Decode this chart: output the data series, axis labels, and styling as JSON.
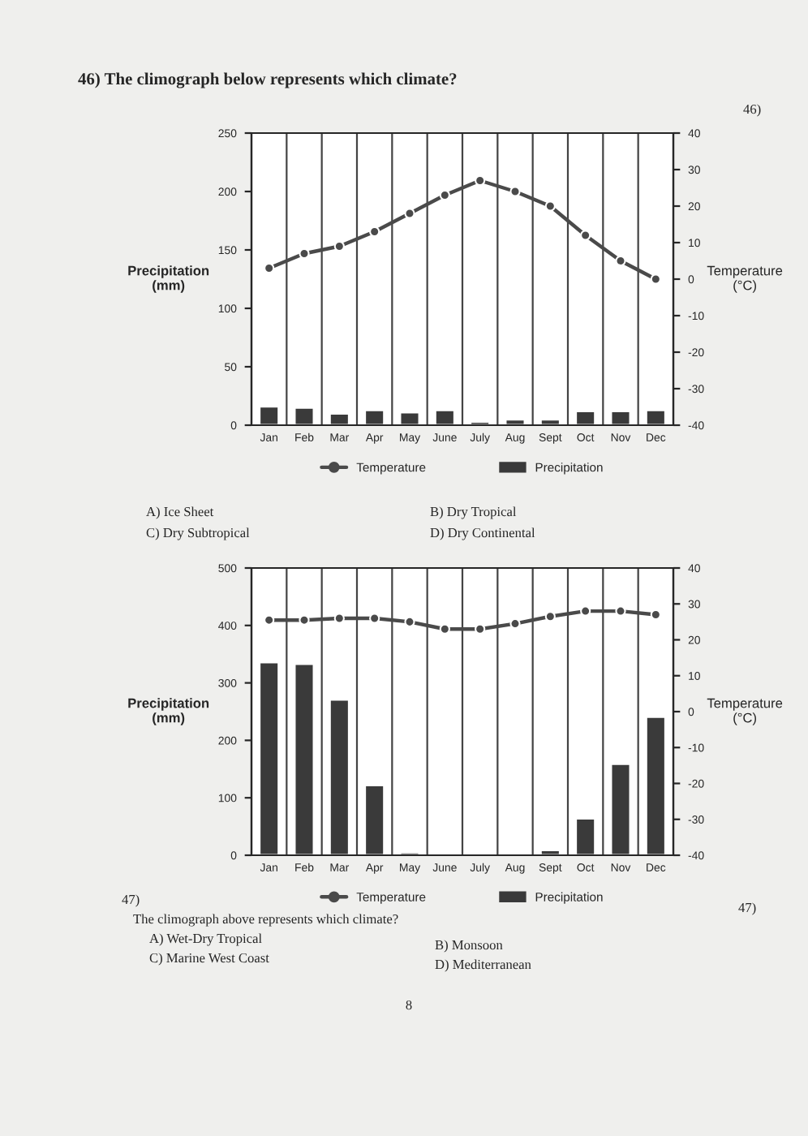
{
  "chart_data": [
    {
      "type": "bar",
      "title": "46) The climograph below represents which climate?",
      "ylabel": "Precipitation\n(mm)",
      "y2label": "Temperature\n(°C)",
      "categories": [
        "Jan",
        "Feb",
        "Mar",
        "Apr",
        "May",
        "June",
        "July",
        "Aug",
        "Sept",
        "Oct",
        "Nov",
        "Dec"
      ],
      "series": [
        {
          "name": "Temperature",
          "type": "line",
          "axis": "y2",
          "color": "#4a4a4a",
          "values": [
            3,
            7,
            9,
            13,
            18,
            23,
            27,
            24,
            20,
            12,
            5,
            0
          ]
        },
        {
          "name": "Precipitation",
          "color": "#3a3a3a",
          "values": [
            16,
            15,
            10,
            13,
            11,
            13,
            3,
            5,
            5,
            12,
            12,
            13
          ]
        }
      ],
      "ylim": [
        0,
        250
      ],
      "yticks": [
        0,
        50,
        100,
        150,
        200,
        250
      ],
      "y2lim": [
        -40,
        40
      ],
      "y2ticks": [
        -40,
        -30,
        -20,
        -10,
        0,
        10,
        20,
        30,
        40
      ],
      "marker": "circle",
      "grid": "x",
      "legend": "bottom",
      "annotations": [
        "46)",
        "A) Ice Sheet",
        "B) Dry Tropical",
        "C) Dry Subtropical",
        "D) Dry Continental"
      ]
    },
    {
      "type": "bar",
      "ylabel": "Precipitation\n(mm)",
      "y2label": "Temperature\n(°C)",
      "categories": [
        "Jan",
        "Feb",
        "Mar",
        "Apr",
        "May",
        "June",
        "July",
        "Aug",
        "Sept",
        "Oct",
        "Nov",
        "Dec"
      ],
      "series": [
        {
          "name": "Temperature",
          "type": "line",
          "axis": "y2",
          "color": "#4a4a4a",
          "values": [
            25.5,
            25.5,
            26,
            26,
            25,
            23,
            23,
            24.5,
            26.5,
            28,
            28,
            27
          ]
        },
        {
          "name": "Precipitation",
          "color": "#3a3a3a",
          "values": [
            336,
            333,
            271,
            122,
            5,
            null,
            1,
            2,
            9,
            64,
            159,
            241
          ]
        }
      ],
      "ylim": [
        0,
        500
      ],
      "yticks": [
        0,
        100,
        200,
        300,
        400,
        500
      ],
      "y2lim": [
        -40,
        40
      ],
      "y2ticks": [
        -40,
        -30,
        -20,
        -10,
        0,
        10,
        20,
        30,
        40
      ],
      "marker": "circle",
      "grid": "x",
      "legend": "bottom",
      "annotations": [
        "47)",
        "The climograph above represents which climate?",
        "A) Wet-Dry Tropical",
        "B) Monsoon",
        "C) Marine West Coast",
        "D) Mediterranean",
        "47)",
        "8"
      ]
    }
  ]
}
